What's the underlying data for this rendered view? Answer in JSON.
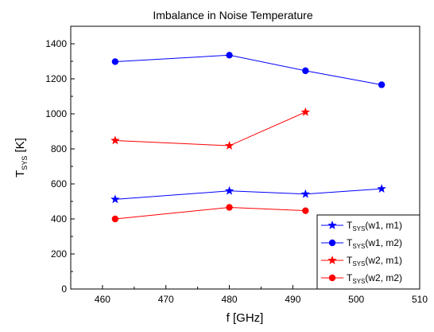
{
  "chart_data": {
    "type": "line",
    "title": "Imbalance in Noise Temperature",
    "xlabel": "f [GHz]",
    "ylabel": {
      "main": "T",
      "sub": "SYS",
      "unit": " [K]"
    },
    "xlim": [
      455,
      510
    ],
    "ylim": [
      0,
      1500
    ],
    "xticks": [
      460,
      470,
      480,
      490,
      500,
      510
    ],
    "yticks": [
      0,
      200,
      400,
      600,
      800,
      1000,
      1200,
      1400
    ],
    "grid": false,
    "legend_position": "bottom-right",
    "series": [
      {
        "name": "w1, m1",
        "legend_prefix": "T",
        "legend_sub": "SYS",
        "color": "#0000ff",
        "marker": "star",
        "x": [
          462,
          480,
          492,
          504
        ],
        "y": [
          512,
          560,
          542,
          572
        ]
      },
      {
        "name": "w1, m2",
        "legend_prefix": "T",
        "legend_sub": "SYS",
        "color": "#0000ff",
        "marker": "circle",
        "x": [
          462,
          480,
          492,
          504
        ],
        "y": [
          1298,
          1335,
          1246,
          1166
        ]
      },
      {
        "name": "w2, m1",
        "legend_prefix": "T",
        "legend_sub": "SYS",
        "color": "#ff0000",
        "marker": "star",
        "x": [
          462,
          480,
          492
        ],
        "y": [
          848,
          818,
          1010
        ]
      },
      {
        "name": "w2, m2",
        "legend_prefix": "T",
        "legend_sub": "SYS",
        "color": "#ff0000",
        "marker": "circle",
        "x": [
          462,
          480,
          492
        ],
        "y": [
          400,
          466,
          447
        ]
      }
    ]
  }
}
